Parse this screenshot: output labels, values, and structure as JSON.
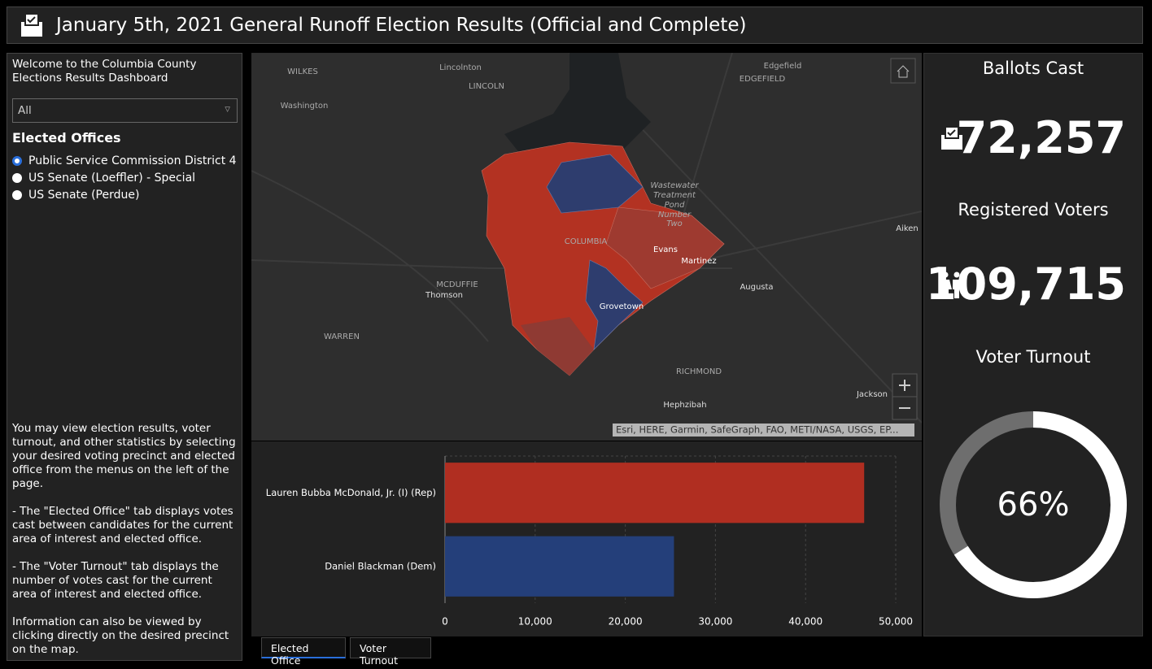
{
  "header": {
    "title": "January 5th, 2021 General Runoff Election Results (Official and Complete)"
  },
  "sidebar": {
    "welcome": "Welcome to the Columbia County Elections Results Dashboard",
    "dropdown": "All",
    "offices_title": "Elected Offices",
    "offices": [
      "Public Service Commission District 4",
      "US Senate (Loeffler) - Special",
      "US Senate (Perdue)"
    ],
    "help": [
      "You may view election results, voter turnout, and other statistics by selecting your desired voting precinct and elected office from the menus on the left of the page.",
      "- The \"Elected Office\" tab displays votes cast between candidates for the current area of interest and elected office.",
      "- The \"Voter Turnout\" tab displays the number of votes cast for the current area of interest and elected office.",
      "Information can also be viewed by clicking directly on the desired precinct on the map."
    ]
  },
  "map": {
    "labels": [
      "WILKES",
      "Lincolnton",
      "LINCOLN",
      "Edgefield",
      "EDGEFIELD",
      "Washington",
      "Wastewater",
      "Treatment",
      "Pond",
      "Number",
      "Two",
      "COLUMBIA",
      "Evans",
      "Martinez",
      "Aiken",
      "Augusta",
      "MCDUFFIE",
      "Thomson",
      "Grovetown",
      "WARREN",
      "RICHMOND",
      "Hephzibah",
      "Jackson"
    ],
    "attribution": "Esri, HERE, Garmin, SafeGraph, FAO, METI/NASA, USGS, EP..."
  },
  "stats": {
    "ballots_title": "Ballots Cast",
    "ballots": "72,257",
    "registered_title": "Registered Voters",
    "registered": "109,715",
    "turnout_title": "Voter Turnout",
    "turnout": {
      "value": 66,
      "label": "66%"
    }
  },
  "chart_data": {
    "type": "bar",
    "orientation": "horizontal",
    "categories": [
      "Lauren Bubba McDonald, Jr. (I) (Rep)",
      "Daniel Blackman (Dem)"
    ],
    "values": [
      46500,
      25400
    ],
    "colors": [
      "#b02e21",
      "#243f7a"
    ],
    "xlim": [
      0,
      50000
    ],
    "xticks": [
      0,
      {
        "value": 10000,
        "label": "10,000"
      },
      {
        "value": 20000,
        "label": "20,000"
      },
      {
        "value": 30000,
        "label": "30,000"
      },
      {
        "value": 40000,
        "label": "40,000"
      },
      {
        "value": 50000,
        "label": "50,000"
      }
    ],
    "grid": true
  },
  "tabs": [
    "Elected Office",
    "Voter Turnout"
  ]
}
